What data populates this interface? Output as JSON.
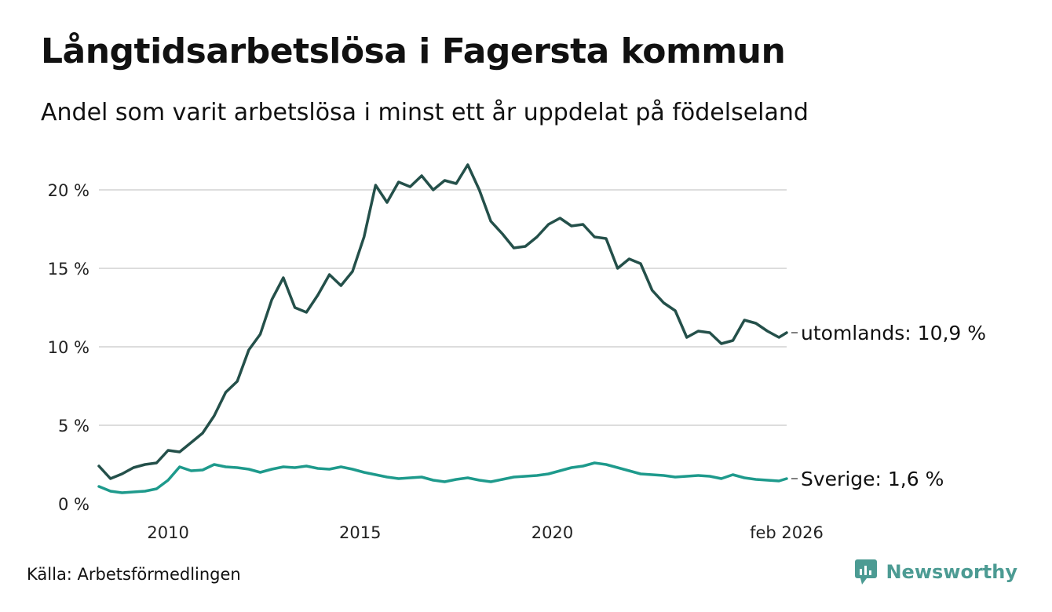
{
  "title": "Långtidsarbetslösa i Fagersta kommun",
  "subtitle": "Andel som varit arbetslösa i minst ett år uppdelat på födelseland",
  "source": "Källa: Arbetsförmedlingen",
  "brand": "Newsworthy",
  "colors": {
    "utomlands": "#24504a",
    "sverige": "#1e9a8c",
    "grid": "#dddddd",
    "brand": "#4c9b93"
  },
  "chart_data": {
    "type": "line",
    "title": "Långtidsarbetslösa i Fagersta kommun",
    "xlabel": "",
    "ylabel": "",
    "xlim": [
      2008.2,
      2026.1
    ],
    "ylim": [
      0,
      22
    ],
    "x_ticks": [
      {
        "value": 2010,
        "label": "2010"
      },
      {
        "value": 2015,
        "label": "2015"
      },
      {
        "value": 2020,
        "label": "2020"
      },
      {
        "value": 2026.1,
        "label": "feb 2026"
      }
    ],
    "y_ticks": [
      {
        "value": 0,
        "label": "0 %"
      },
      {
        "value": 5,
        "label": "5 %"
      },
      {
        "value": 10,
        "label": "10 %"
      },
      {
        "value": 15,
        "label": "15 %"
      },
      {
        "value": 20,
        "label": "20 %"
      }
    ],
    "grid": true,
    "series": [
      {
        "name": "utomlands",
        "end_label": "utomlands: 10,9 %",
        "end_value": 10.9,
        "x": [
          2008.2,
          2008.5,
          2008.8,
          2009.1,
          2009.4,
          2009.7,
          2010.0,
          2010.3,
          2010.6,
          2010.9,
          2011.2,
          2011.5,
          2011.8,
          2012.1,
          2012.4,
          2012.7,
          2013.0,
          2013.3,
          2013.6,
          2013.9,
          2014.2,
          2014.5,
          2014.8,
          2015.1,
          2015.4,
          2015.7,
          2016.0,
          2016.3,
          2016.6,
          2016.9,
          2017.2,
          2017.5,
          2017.8,
          2018.1,
          2018.4,
          2018.7,
          2019.0,
          2019.3,
          2019.6,
          2019.9,
          2020.2,
          2020.5,
          2020.8,
          2021.1,
          2021.4,
          2021.7,
          2022.0,
          2022.3,
          2022.6,
          2022.9,
          2023.2,
          2023.5,
          2023.8,
          2024.1,
          2024.4,
          2024.7,
          2025.0,
          2025.3,
          2025.6,
          2025.9,
          2026.1
        ],
        "values": [
          2.4,
          1.6,
          1.9,
          2.3,
          2.5,
          2.6,
          3.4,
          3.3,
          3.9,
          4.5,
          5.6,
          7.1,
          7.8,
          9.8,
          10.8,
          13.0,
          14.4,
          12.5,
          12.2,
          13.3,
          14.6,
          13.9,
          14.8,
          17.0,
          20.3,
          19.2,
          20.5,
          20.2,
          20.9,
          20.0,
          20.6,
          20.4,
          21.6,
          20.0,
          18.0,
          17.2,
          16.3,
          16.4,
          17.0,
          17.8,
          18.2,
          17.7,
          17.8,
          17.0,
          16.9,
          15.0,
          15.6,
          15.3,
          13.6,
          12.8,
          12.3,
          10.6,
          11.0,
          10.9,
          10.2,
          10.4,
          11.7,
          11.5,
          11.0,
          10.6,
          10.9
        ]
      },
      {
        "name": "Sverige",
        "end_label": "Sverige:  1,6 %",
        "end_value": 1.6,
        "x": [
          2008.2,
          2008.5,
          2008.8,
          2009.1,
          2009.4,
          2009.7,
          2010.0,
          2010.3,
          2010.6,
          2010.9,
          2011.2,
          2011.5,
          2011.8,
          2012.1,
          2012.4,
          2012.7,
          2013.0,
          2013.3,
          2013.6,
          2013.9,
          2014.2,
          2014.5,
          2014.8,
          2015.1,
          2015.4,
          2015.7,
          2016.0,
          2016.3,
          2016.6,
          2016.9,
          2017.2,
          2017.5,
          2017.8,
          2018.1,
          2018.4,
          2018.7,
          2019.0,
          2019.3,
          2019.6,
          2019.9,
          2020.2,
          2020.5,
          2020.8,
          2021.1,
          2021.4,
          2021.7,
          2022.0,
          2022.3,
          2022.6,
          2022.9,
          2023.2,
          2023.5,
          2023.8,
          2024.1,
          2024.4,
          2024.7,
          2025.0,
          2025.3,
          2025.6,
          2025.9,
          2026.1
        ],
        "values": [
          1.1,
          0.8,
          0.7,
          0.75,
          0.8,
          0.95,
          1.5,
          2.35,
          2.1,
          2.15,
          2.5,
          2.35,
          2.3,
          2.2,
          2.0,
          2.2,
          2.35,
          2.3,
          2.4,
          2.25,
          2.2,
          2.35,
          2.2,
          2.0,
          1.85,
          1.7,
          1.6,
          1.65,
          1.7,
          1.5,
          1.4,
          1.55,
          1.65,
          1.5,
          1.4,
          1.55,
          1.7,
          1.75,
          1.8,
          1.9,
          2.1,
          2.3,
          2.4,
          2.6,
          2.5,
          2.3,
          2.1,
          1.9,
          1.85,
          1.8,
          1.7,
          1.75,
          1.8,
          1.75,
          1.6,
          1.85,
          1.65,
          1.55,
          1.5,
          1.45,
          1.6
        ]
      }
    ]
  }
}
